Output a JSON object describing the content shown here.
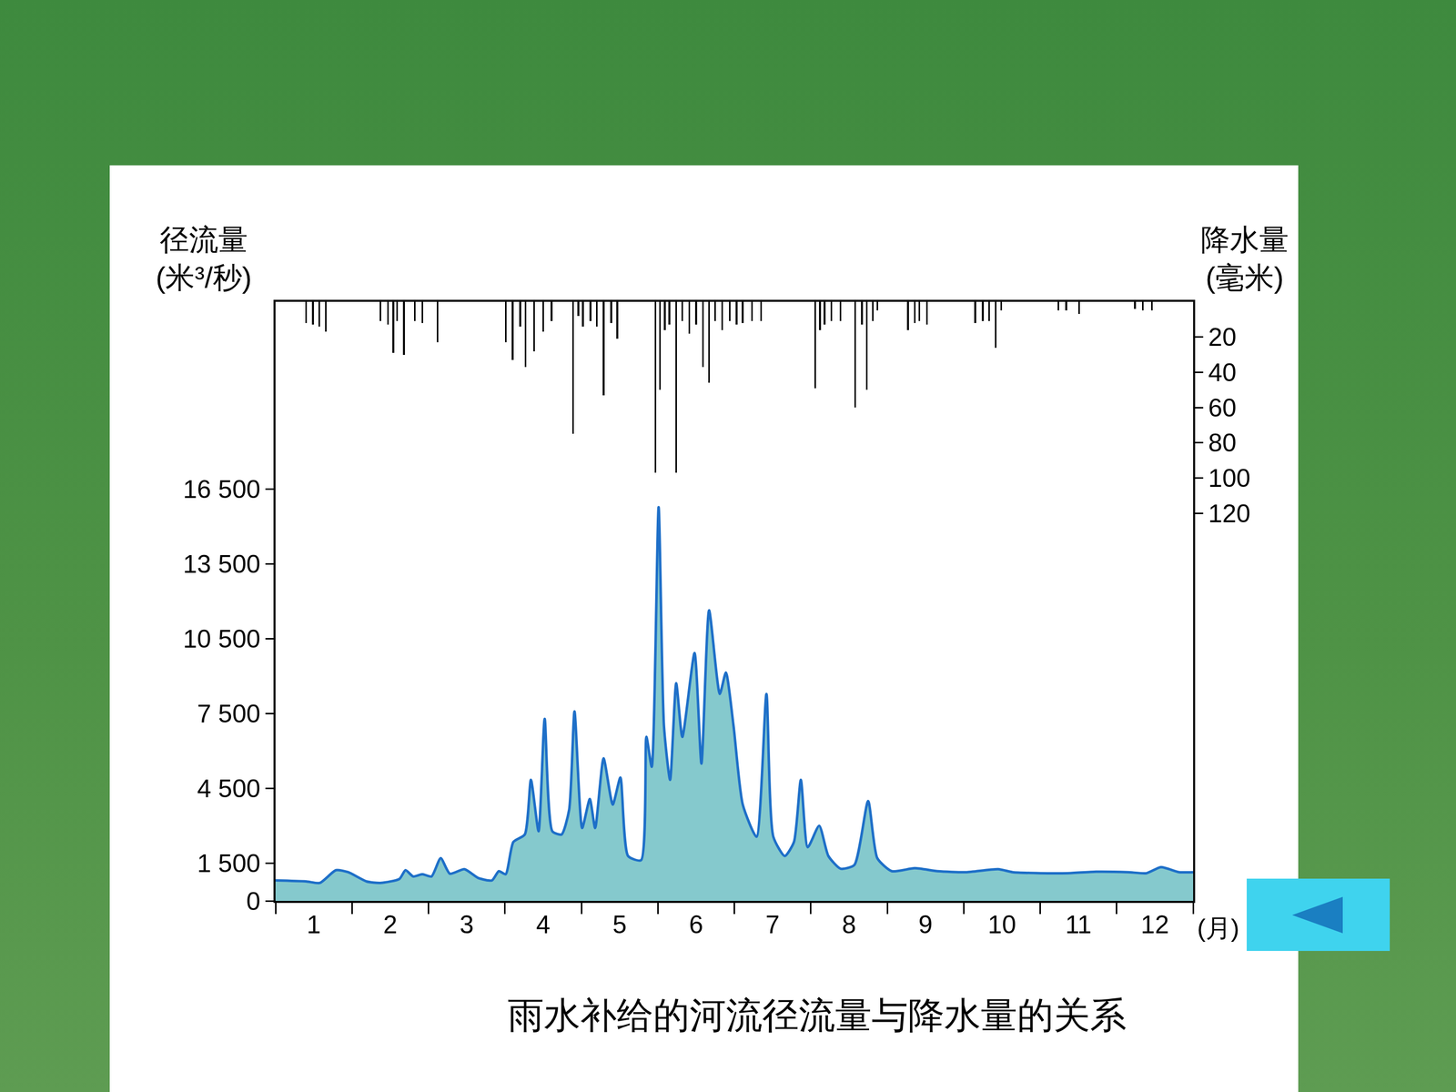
{
  "chart_data": {
    "type": "area",
    "title": "雨水补给的河流径流量与降水量的关系",
    "x_label": "(月)",
    "y_label": "径流量\n(米³/秒)",
    "y2_label": "降水量\n(毫米)",
    "xlim": [
      0,
      12
    ],
    "xticks": [
      {
        "value": 0.5,
        "label": "1"
      },
      {
        "value": 1.5,
        "label": "2"
      },
      {
        "value": 2.5,
        "label": "3"
      },
      {
        "value": 3.5,
        "label": "4"
      },
      {
        "value": 4.5,
        "label": "5"
      },
      {
        "value": 5.5,
        "label": "6"
      },
      {
        "value": 6.5,
        "label": "7"
      },
      {
        "value": 7.5,
        "label": "8"
      },
      {
        "value": 8.5,
        "label": "9"
      },
      {
        "value": 9.5,
        "label": "10"
      },
      {
        "value": 10.5,
        "label": "11"
      },
      {
        "value": 11.5,
        "label": "12"
      }
    ],
    "ylim": [
      0,
      24000
    ],
    "yticks": [
      0,
      {
        "value": 1500,
        "label": "1 500"
      },
      {
        "value": 4500,
        "label": "4 500"
      },
      {
        "value": 7500,
        "label": "7 500"
      },
      {
        "value": 10500,
        "label": "10 500"
      },
      {
        "value": 13500,
        "label": "13 500"
      },
      {
        "value": 16500,
        "label": "16 500"
      }
    ],
    "y2lim": [
      340,
      0
    ],
    "y2ticks": [
      20,
      40,
      60,
      80,
      100,
      120
    ],
    "grid": false,
    "series": [
      {
        "type": "area",
        "color": "#1e6fc8",
        "x": [
          0,
          0.4,
          0.58,
          0.79,
          0.95,
          1.19,
          1.37,
          1.62,
          1.7,
          1.8,
          1.92,
          2.04,
          2.16,
          2.28,
          2.47,
          2.65,
          2.83,
          2.92,
          3.01,
          3.11,
          3.26,
          3.34,
          3.44,
          3.52,
          3.62,
          3.74,
          3.84,
          3.91,
          4.01,
          4.11,
          4.18,
          4.29,
          4.41,
          4.51,
          4.61,
          4.78,
          4.85,
          4.92,
          5.01,
          5.08,
          5.16,
          5.24,
          5.32,
          5.48,
          5.57,
          5.67,
          5.81,
          5.89,
          5.99,
          6.11,
          6.29,
          6.42,
          6.51,
          6.66,
          6.78,
          6.87,
          6.96,
          7.11,
          7.23,
          7.39,
          7.57,
          7.75,
          7.87,
          8.06,
          8.36,
          8.66,
          9.03,
          9.45,
          9.64,
          10.0,
          10.36,
          10.73,
          11.15,
          11.39,
          11.58,
          11.82,
          12.0
        ],
        "values": [
          820,
          780,
          720,
          1230,
          1150,
          780,
          720,
          880,
          1230,
          980,
          1070,
          980,
          1710,
          1090,
          1270,
          920,
          820,
          1190,
          1070,
          2360,
          2660,
          4850,
          2790,
          7290,
          2790,
          2660,
          3650,
          7590,
          2920,
          4080,
          2920,
          5710,
          3860,
          4940,
          1800,
          1630,
          6570,
          5370,
          15770,
          7000,
          4850,
          8720,
          6570,
          9930,
          5500,
          11640,
          8290,
          9150,
          7000,
          3860,
          2570,
          8290,
          2570,
          1800,
          2360,
          4850,
          2150,
          3010,
          1800,
          1290,
          1440,
          4000,
          1710,
          1190,
          1310,
          1190,
          1150,
          1270,
          1150,
          1110,
          1110,
          1170,
          1150,
          1110,
          1350,
          1150,
          1150
        ]
      },
      {
        "type": "bar",
        "axis": "y2",
        "color": "#000000",
        "x": [
          0.4,
          0.49,
          0.57,
          0.66,
          1.37,
          1.47,
          1.54,
          1.59,
          1.68,
          1.82,
          1.92,
          2.12,
          3.01,
          3.1,
          3.2,
          3.27,
          3.38,
          3.5,
          3.61,
          3.89,
          3.96,
          4.02,
          4.12,
          4.2,
          4.29,
          4.39,
          4.47,
          4.97,
          5.03,
          5.09,
          5.15,
          5.24,
          5.32,
          5.41,
          5.5,
          5.59,
          5.67,
          5.75,
          5.84,
          5.94,
          6.03,
          6.11,
          6.23,
          6.35,
          7.06,
          7.12,
          7.18,
          7.27,
          7.39,
          7.58,
          7.67,
          7.73,
          7.81,
          7.87,
          8.27,
          8.36,
          8.42,
          8.52,
          9.15,
          9.25,
          9.33,
          9.42,
          9.49,
          10.24,
          10.34,
          10.51,
          11.24,
          11.34,
          11.46
        ],
        "values": [
          12,
          13,
          14,
          17,
          11,
          13,
          29,
          11,
          30,
          11,
          12,
          23,
          23,
          33,
          14,
          37,
          28,
          17,
          11,
          75,
          8,
          14,
          11,
          14,
          53,
          12,
          21,
          97,
          50,
          16,
          13,
          97,
          11,
          18,
          13,
          37,
          46,
          11,
          16,
          11,
          13,
          12,
          11,
          11,
          49,
          16,
          13,
          11,
          11,
          60,
          13,
          50,
          11,
          5,
          16,
          12,
          11,
          13,
          12,
          11,
          11,
          26,
          5,
          5,
          5,
          7,
          4,
          5,
          5
        ]
      }
    ]
  }
}
